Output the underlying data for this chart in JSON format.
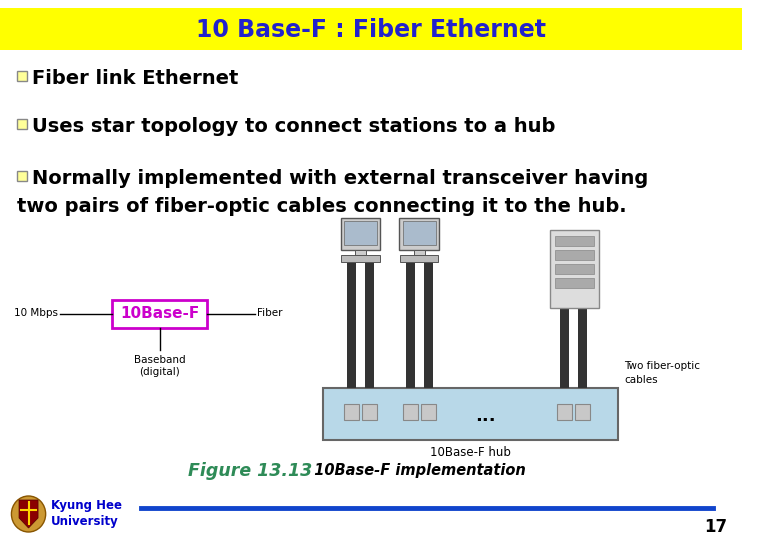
{
  "title": "10 Base-F : Fiber Ethernet",
  "title_color": "#2222CC",
  "title_bg_color": "#FFFF00",
  "bg_color": "#FFFFFF",
  "bullet1": "Fiber link Ethernet",
  "bullet2": "Uses star topology to connect stations to a hub",
  "bullet3a": "Normally implemented with external transceiver having",
  "bullet3b": "two pairs of fiber-optic cables connecting it to the hub.",
  "bullet_color": "#000000",
  "bullet_fill": "#FFFF99",
  "bullet_border": "#888888",
  "fig_label": "Figure 13.13",
  "fig_label_color": "#2E8B57",
  "fig_caption": "  10Base-F implementation",
  "fig_caption_color": "#000000",
  "page_number": "17",
  "uni_name_line1": "Kyung Hee",
  "uni_name_line2": "University",
  "uni_color": "#0000CC",
  "bottom_line_color": "#1144CC",
  "box_label": "10Base-F",
  "box_label_color": "#CC00CC",
  "label_10mbps": "10 Mbps",
  "label_fiber": "Fiber",
  "label_baseband": "Baseband\n(digital)",
  "label_hub": "10Base-F hub",
  "label_two_fiber": "Two fiber-optic\ncables",
  "hub_color": "#B8D8E8",
  "hub_border_color": "#666666",
  "cable_color": "#333333",
  "port_color": "#C8C8C8",
  "port_border_color": "#888888",
  "server_color": "#DDDDDD",
  "server_border_color": "#888888",
  "monitor_body_color": "#CCCCCC",
  "monitor_screen_color": "#AABBCC",
  "font_size_bullet": 14,
  "font_size_title": 17
}
